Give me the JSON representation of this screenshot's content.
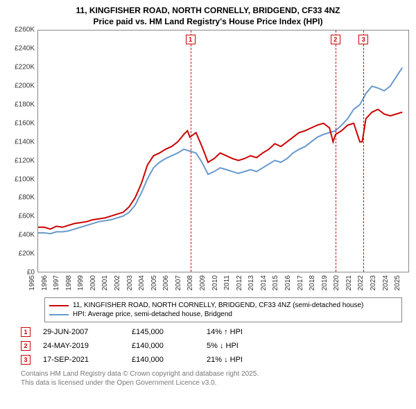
{
  "title": {
    "line1": "11, KINGFISHER ROAD, NORTH CORNELLY, BRIDGEND, CF33 4NZ",
    "line2": "Price paid vs. HM Land Registry's House Price Index (HPI)"
  },
  "chart": {
    "type": "line",
    "ylim": [
      0,
      260000
    ],
    "ytick_step": 20000,
    "y_ticks": [
      "£0",
      "£20K",
      "£40K",
      "£60K",
      "£80K",
      "£100K",
      "£120K",
      "£140K",
      "£160K",
      "£180K",
      "£200K",
      "£220K",
      "£240K",
      "£260K"
    ],
    "x_years": [
      1995,
      1996,
      1997,
      1998,
      1999,
      2000,
      2001,
      2002,
      2003,
      2004,
      2005,
      2006,
      2007,
      2008,
      2009,
      2010,
      2011,
      2012,
      2013,
      2014,
      2015,
      2016,
      2017,
      2018,
      2019,
      2020,
      2021,
      2022,
      2023,
      2024,
      2025
    ],
    "xlim": [
      1995,
      2025.5
    ],
    "background_color": "#ffffff",
    "grid_color": "#888888",
    "series": {
      "price_paid": {
        "color": "#cc0000",
        "width": 2,
        "label": "11, KINGFISHER ROAD, NORTH CORNELLY, BRIDGEND, CF33 4NZ (semi-detached house)",
        "points": [
          [
            1995,
            48000
          ],
          [
            1995.5,
            48000
          ],
          [
            1996,
            46000
          ],
          [
            1996.5,
            49000
          ],
          [
            1997,
            48000
          ],
          [
            1997.5,
            50000
          ],
          [
            1998,
            52000
          ],
          [
            1998.5,
            53000
          ],
          [
            1999,
            54000
          ],
          [
            1999.5,
            56000
          ],
          [
            2000,
            57000
          ],
          [
            2000.5,
            58000
          ],
          [
            2001,
            60000
          ],
          [
            2001.5,
            62000
          ],
          [
            2002,
            64000
          ],
          [
            2002.5,
            70000
          ],
          [
            2003,
            80000
          ],
          [
            2003.5,
            95000
          ],
          [
            2004,
            115000
          ],
          [
            2004.5,
            125000
          ],
          [
            2005,
            128000
          ],
          [
            2005.5,
            132000
          ],
          [
            2006,
            135000
          ],
          [
            2006.5,
            140000
          ],
          [
            2007,
            148000
          ],
          [
            2007.3,
            152000
          ],
          [
            2007.5,
            145000
          ],
          [
            2008,
            150000
          ],
          [
            2008.5,
            135000
          ],
          [
            2009,
            118000
          ],
          [
            2009.5,
            122000
          ],
          [
            2010,
            128000
          ],
          [
            2010.5,
            125000
          ],
          [
            2011,
            122000
          ],
          [
            2011.5,
            120000
          ],
          [
            2012,
            122000
          ],
          [
            2012.5,
            125000
          ],
          [
            2013,
            123000
          ],
          [
            2013.5,
            128000
          ],
          [
            2014,
            132000
          ],
          [
            2014.5,
            138000
          ],
          [
            2015,
            135000
          ],
          [
            2015.5,
            140000
          ],
          [
            2016,
            145000
          ],
          [
            2016.5,
            150000
          ],
          [
            2017,
            152000
          ],
          [
            2017.5,
            155000
          ],
          [
            2018,
            158000
          ],
          [
            2018.5,
            160000
          ],
          [
            2019,
            155000
          ],
          [
            2019.3,
            140000
          ],
          [
            2019.5,
            148000
          ],
          [
            2020,
            152000
          ],
          [
            2020.5,
            158000
          ],
          [
            2021,
            160000
          ],
          [
            2021.5,
            140000
          ],
          [
            2021.7,
            140000
          ],
          [
            2022,
            165000
          ],
          [
            2022.5,
            172000
          ],
          [
            2023,
            175000
          ],
          [
            2023.5,
            170000
          ],
          [
            2024,
            168000
          ],
          [
            2024.5,
            170000
          ],
          [
            2025,
            172000
          ]
        ]
      },
      "hpi": {
        "color": "#6699cc",
        "width": 2,
        "label": "HPI: Average price, semi-detached house, Bridgend",
        "points": [
          [
            1995,
            42000
          ],
          [
            1995.5,
            42000
          ],
          [
            1996,
            41000
          ],
          [
            1996.5,
            43000
          ],
          [
            1997,
            43000
          ],
          [
            1997.5,
            44000
          ],
          [
            1998,
            46000
          ],
          [
            1998.5,
            48000
          ],
          [
            1999,
            50000
          ],
          [
            1999.5,
            52000
          ],
          [
            2000,
            54000
          ],
          [
            2000.5,
            55000
          ],
          [
            2001,
            56000
          ],
          [
            2001.5,
            58000
          ],
          [
            2002,
            60000
          ],
          [
            2002.5,
            64000
          ],
          [
            2003,
            72000
          ],
          [
            2003.5,
            85000
          ],
          [
            2004,
            100000
          ],
          [
            2004.5,
            112000
          ],
          [
            2005,
            118000
          ],
          [
            2005.5,
            122000
          ],
          [
            2006,
            125000
          ],
          [
            2006.5,
            128000
          ],
          [
            2007,
            132000
          ],
          [
            2007.5,
            130000
          ],
          [
            2008,
            128000
          ],
          [
            2008.5,
            118000
          ],
          [
            2009,
            105000
          ],
          [
            2009.5,
            108000
          ],
          [
            2010,
            112000
          ],
          [
            2010.5,
            110000
          ],
          [
            2011,
            108000
          ],
          [
            2011.5,
            106000
          ],
          [
            2012,
            108000
          ],
          [
            2012.5,
            110000
          ],
          [
            2013,
            108000
          ],
          [
            2013.5,
            112000
          ],
          [
            2014,
            116000
          ],
          [
            2014.5,
            120000
          ],
          [
            2015,
            118000
          ],
          [
            2015.5,
            122000
          ],
          [
            2016,
            128000
          ],
          [
            2016.5,
            132000
          ],
          [
            2017,
            135000
          ],
          [
            2017.5,
            140000
          ],
          [
            2018,
            145000
          ],
          [
            2018.5,
            148000
          ],
          [
            2019,
            150000
          ],
          [
            2019.5,
            152000
          ],
          [
            2020,
            158000
          ],
          [
            2020.5,
            165000
          ],
          [
            2021,
            175000
          ],
          [
            2021.5,
            180000
          ],
          [
            2022,
            192000
          ],
          [
            2022.5,
            200000
          ],
          [
            2023,
            198000
          ],
          [
            2023.5,
            195000
          ],
          [
            2024,
            200000
          ],
          [
            2024.5,
            210000
          ],
          [
            2025,
            220000
          ]
        ]
      }
    },
    "markers": [
      {
        "n": "1",
        "year": 2007.5,
        "color": "#cc0000"
      },
      {
        "n": "2",
        "year": 2019.4,
        "color": "#cc0000"
      },
      {
        "n": "3",
        "year": 2021.7,
        "color": "#cc0000"
      }
    ]
  },
  "legend": {
    "items": [
      {
        "key": "price_paid"
      },
      {
        "key": "hpi"
      }
    ]
  },
  "sales": [
    {
      "n": "1",
      "date": "29-JUN-2007",
      "price": "£145,000",
      "delta": "14% ↑ HPI",
      "color": "#cc0000"
    },
    {
      "n": "2",
      "date": "24-MAY-2019",
      "price": "£140,000",
      "delta": "5% ↓ HPI",
      "color": "#cc0000"
    },
    {
      "n": "3",
      "date": "17-SEP-2021",
      "price": "£140,000",
      "delta": "21% ↓ HPI",
      "color": "#cc0000"
    }
  ],
  "footer": {
    "line1": "Contains HM Land Registry data © Crown copyright and database right 2025.",
    "line2": "This data is licensed under the Open Government Licence v3.0."
  }
}
